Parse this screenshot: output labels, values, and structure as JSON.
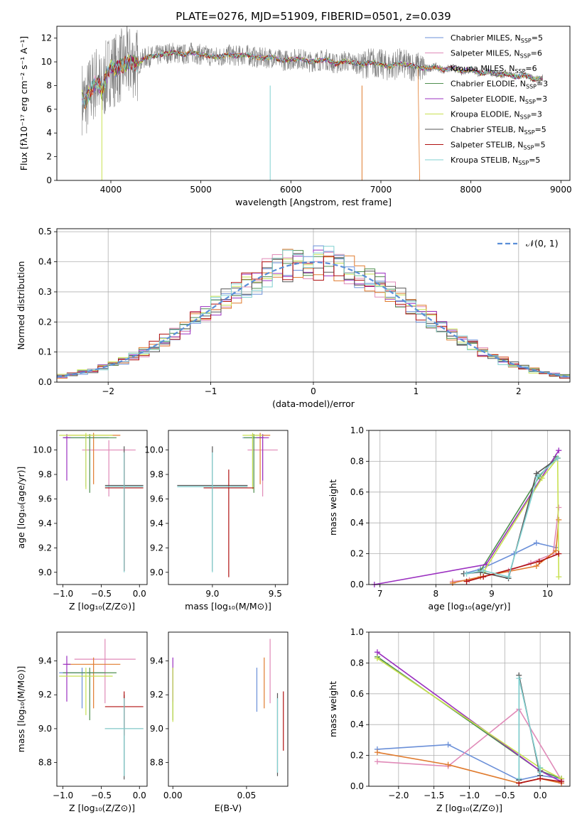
{
  "colors": {
    "chabrier_miles": "#6a8fd8",
    "salpeter_miles": "#e08ab8",
    "kroupa_miles": "#e07b2e",
    "chabrier_elodie": "#4f8f4f",
    "salpeter_elodie": "#9b30c0",
    "kroupa_elodie": "#c8e050",
    "chabrier_stelib": "#555555",
    "salpeter_stelib": "#b01010",
    "kroupa_stelib": "#80d0d0",
    "data": "#808080",
    "normal": "#5a8fd8"
  },
  "legend_series": [
    {
      "name": "Chabrier MILES, N",
      "sub": "SSP",
      "tail": "=5",
      "color": "#6a8fd8"
    },
    {
      "name": "Salpeter MILES, N",
      "sub": "SSP",
      "tail": "=6",
      "color": "#e08ab8"
    },
    {
      "name": "Kroupa MILES, N",
      "sub": "SSP",
      "tail": "=6",
      "color": "#e07b2e"
    },
    {
      "name": "Chabrier ELODIE, N",
      "sub": "SSP",
      "tail": "=3",
      "color": "#4f8f4f"
    },
    {
      "name": "Salpeter ELODIE, N",
      "sub": "SSP",
      "tail": "=3",
      "color": "#9b30c0"
    },
    {
      "name": "Kroupa ELODIE, N",
      "sub": "SSP",
      "tail": "=3",
      "color": "#c8e050"
    },
    {
      "name": "Chabrier STELIB, N",
      "sub": "SSP",
      "tail": "=5",
      "color": "#555555"
    },
    {
      "name": "Salpeter STELIB, N",
      "sub": "SSP",
      "tail": "=5",
      "color": "#b01010"
    },
    {
      "name": "Kroupa STELIB, N",
      "sub": "SSP",
      "tail": "=5",
      "color": "#80d0d0"
    }
  ],
  "chart_data": [
    {
      "type": "line",
      "title": "PLATE=0276, MJD=51909, FIBERID=0501, z=0.039",
      "xlabel": "wavelength [Angstrom, rest frame]",
      "ylabel": "Flux [fλ10⁻¹⁷ erg cm⁻² s⁻¹ A⁻¹]",
      "xlim": [
        3400,
        9100
      ],
      "ylim": [
        0,
        13
      ],
      "xticks": [
        "4000",
        "5000",
        "6000",
        "7000",
        "8000",
        "9000"
      ],
      "yticks": [
        "0",
        "2",
        "4",
        "6",
        "8",
        "10",
        "12"
      ],
      "legend_position": "upper-right",
      "spectrum": {
        "x": [
          3680,
          3720,
          3760,
          3800,
          3850,
          3900,
          3950,
          4000,
          4050,
          4100,
          4150,
          4200,
          4250,
          4300,
          4350,
          4400,
          4500,
          4600,
          4700,
          4800,
          4900,
          5000,
          5100,
          5200,
          5300,
          5400,
          5500,
          5600,
          5700,
          5800,
          5900,
          6000,
          6100,
          6200,
          6300,
          6400,
          6500,
          6600,
          6700,
          6800,
          6900,
          7000,
          7100,
          7200,
          7300,
          7400,
          7500,
          7600,
          7700,
          7800,
          7900,
          8000,
          8100,
          8200,
          8300,
          8400,
          8500,
          8600,
          8700,
          8800
        ],
        "y": [
          7.0,
          6.6,
          7.4,
          7.9,
          8.5,
          7.4,
          8.8,
          9.5,
          9.3,
          9.6,
          9.8,
          9.9,
          10.0,
          9.7,
          10.2,
          10.4,
          10.5,
          10.7,
          10.8,
          10.6,
          10.8,
          10.6,
          10.5,
          10.4,
          10.6,
          10.5,
          10.6,
          10.4,
          10.3,
          10.4,
          10.1,
          10.2,
          10.3,
          10.0,
          10.1,
          10.2,
          9.8,
          10.1,
          9.9,
          9.8,
          10.0,
          9.8,
          9.6,
          9.9,
          9.7,
          9.6,
          9.4,
          9.6,
          9.3,
          9.5,
          9.2,
          9.4,
          9.0,
          9.2,
          8.9,
          9.0,
          8.7,
          8.9,
          8.5,
          8.6
        ]
      }
    },
    {
      "type": "histogram",
      "xlabel": "(data-model)/error",
      "ylabel": "Normed distribution",
      "xlim": [
        -2.5,
        2.5
      ],
      "ylim": [
        0,
        0.51
      ],
      "xticks": [
        "−2",
        "−1",
        "0",
        "1",
        "2"
      ],
      "yticks": [
        "0.0",
        "0.1",
        "0.2",
        "0.3",
        "0.4",
        "0.5"
      ],
      "grid": true,
      "legend": "𝒩(0, 1)",
      "bin_width": 0.1
    },
    {
      "type": "scatter",
      "xlabel": "Z [log₁₀(Z/Z⊙)]",
      "ylabel": "age  [log₁₀(age/yr)]",
      "xlim": [
        -1.08,
        0.1
      ],
      "ylim": [
        8.9,
        10.16
      ],
      "xticks": [
        "−1.0",
        "−0.5",
        "0.0"
      ],
      "yticks": [
        "9.0",
        "9.2",
        "9.4",
        "9.6",
        "9.8",
        "10.0"
      ],
      "points": [
        {
          "x": -0.7,
          "y": 10.1,
          "xerr": 0.3,
          "ylo": 9.7,
          "yhi": 10.13,
          "c": "#6a8fd8"
        },
        {
          "x": -0.4,
          "y": 10.0,
          "xerr": 0.35,
          "ylo": 9.62,
          "yhi": 10.08,
          "c": "#e08ab8"
        },
        {
          "x": -0.6,
          "y": 10.12,
          "xerr": 0.35,
          "ylo": 9.72,
          "yhi": 10.14,
          "c": "#e07b2e"
        },
        {
          "x": -0.65,
          "y": 10.1,
          "xerr": 0.35,
          "ylo": 9.65,
          "yhi": 10.13,
          "c": "#4f8f4f"
        },
        {
          "x": -0.95,
          "y": 10.1,
          "xerr": 0.05,
          "ylo": 9.75,
          "yhi": 10.13,
          "c": "#9b30c0"
        },
        {
          "x": -0.7,
          "y": 10.12,
          "xerr": 0.35,
          "ylo": 9.68,
          "yhi": 10.14,
          "c": "#c8e050"
        },
        {
          "x": -0.2,
          "y": 9.71,
          "xerr": 0.25,
          "ylo": 9.01,
          "yhi": 10.03,
          "c": "#555555"
        },
        {
          "x": -0.2,
          "y": 9.69,
          "xerr": 0.25,
          "ylo": 9.01,
          "yhi": 9.98,
          "c": "#b01010"
        },
        {
          "x": -0.2,
          "y": 9.7,
          "xerr": 0.25,
          "ylo": 9.0,
          "yhi": 9.98,
          "c": "#80d0d0"
        }
      ]
    },
    {
      "type": "scatter",
      "xlabel": "mass [log₁₀(M/M⊙)]",
      "ylabel": "",
      "xlim": [
        8.65,
        9.6
      ],
      "ylim": [
        8.9,
        10.16
      ],
      "xticks": [
        "9.0",
        "9.5"
      ],
      "yticks": [
        "9.0",
        "9.2",
        "9.4",
        "9.6",
        "9.8",
        "10.0"
      ],
      "points": [
        {
          "x": 9.32,
          "y": 10.1,
          "xerr": 0.08,
          "ylo": 9.7,
          "yhi": 10.13,
          "c": "#6a8fd8"
        },
        {
          "x": 9.4,
          "y": 10.0,
          "xerr": 0.12,
          "ylo": 9.62,
          "yhi": 10.08,
          "c": "#e08ab8"
        },
        {
          "x": 9.38,
          "y": 10.12,
          "xerr": 0.08,
          "ylo": 9.72,
          "yhi": 10.14,
          "c": "#e07b2e"
        },
        {
          "x": 9.33,
          "y": 10.1,
          "xerr": 0.08,
          "ylo": 9.65,
          "yhi": 10.13,
          "c": "#4f8f4f"
        },
        {
          "x": 9.4,
          "y": 10.1,
          "xerr": 0.05,
          "ylo": 9.75,
          "yhi": 10.13,
          "c": "#9b30c0"
        },
        {
          "x": 9.32,
          "y": 10.12,
          "xerr": 0.08,
          "ylo": 9.68,
          "yhi": 10.14,
          "c": "#c8e050"
        },
        {
          "x": 9.0,
          "y": 9.71,
          "xerr": 0.28,
          "ylo": 9.01,
          "yhi": 10.03,
          "c": "#555555"
        },
        {
          "x": 9.13,
          "y": 9.69,
          "xerr": 0.2,
          "ylo": 8.96,
          "yhi": 9.84,
          "c": "#b01010"
        },
        {
          "x": 9.0,
          "y": 9.7,
          "xerr": 0.28,
          "ylo": 9.0,
          "yhi": 9.98,
          "c": "#80d0d0"
        }
      ]
    },
    {
      "type": "line",
      "xlabel": "age  [log₁₀(age/yr)]",
      "ylabel": "mass weight",
      "xlim": [
        6.8,
        10.4
      ],
      "ylim": [
        0,
        1
      ],
      "xticks": [
        "7",
        "8",
        "9",
        "10"
      ],
      "yticks": [
        "0.0",
        "0.2",
        "0.4",
        "0.6",
        "0.8",
        "1.0"
      ],
      "grid": true,
      "series": [
        {
          "c": "#6a8fd8",
          "x": [
            8.5,
            8.8,
            9.4,
            9.8,
            10.15
          ],
          "y": [
            0.07,
            0.1,
            0.2,
            0.27,
            0.24
          ]
        },
        {
          "c": "#e08ab8",
          "x": [
            8.3,
            8.6,
            9.3,
            9.7,
            10.1,
            10.2
          ],
          "y": [
            0.02,
            0.03,
            0.09,
            0.14,
            0.2,
            0.5
          ]
        },
        {
          "c": "#e07b2e",
          "x": [
            8.3,
            8.8,
            9.8,
            10.15,
            10.2
          ],
          "y": [
            0.01,
            0.05,
            0.12,
            0.22,
            0.42
          ]
        },
        {
          "c": "#4f8f4f",
          "x": [
            8.8,
            9.85,
            10.15
          ],
          "y": [
            0.09,
            0.7,
            0.83
          ]
        },
        {
          "c": "#9b30c0",
          "x": [
            6.9,
            8.9,
            10.2
          ],
          "y": [
            0.0,
            0.13,
            0.87
          ]
        },
        {
          "c": "#c8e050",
          "x": [
            8.85,
            9.9,
            10.18,
            10.2
          ],
          "y": [
            0.08,
            0.69,
            0.82,
            0.05
          ]
        },
        {
          "c": "#555555",
          "x": [
            8.5,
            8.8,
            9.3,
            9.8,
            10.18
          ],
          "y": [
            0.07,
            0.08,
            0.04,
            0.72,
            0.82
          ]
        },
        {
          "c": "#b01010",
          "x": [
            8.55,
            8.85,
            9.85,
            10.2
          ],
          "y": [
            0.02,
            0.05,
            0.15,
            0.2
          ]
        },
        {
          "c": "#80d0d0",
          "x": [
            8.55,
            8.85,
            9.3,
            9.82,
            10.18
          ],
          "y": [
            0.07,
            0.09,
            0.05,
            0.7,
            0.82
          ]
        }
      ]
    },
    {
      "type": "scatter",
      "xlabel": "Z [log₁₀(Z/Z⊙)]",
      "ylabel": "mass [log₁₀(M/M⊙)]",
      "xlim": [
        -1.08,
        0.1
      ],
      "ylim": [
        8.66,
        9.57
      ],
      "xticks": [
        "−1.0",
        "−0.5",
        "0.0"
      ],
      "yticks": [
        "8.8",
        "9.0",
        "9.2",
        "9.4"
      ],
      "points": [
        {
          "x": -0.75,
          "y": 9.33,
          "xerr": 0.3,
          "ylo": 9.12,
          "yhi": 9.36,
          "c": "#6a8fd8"
        },
        {
          "x": -0.45,
          "y": 9.41,
          "xerr": 0.4,
          "ylo": 9.15,
          "yhi": 9.53,
          "c": "#e08ab8"
        },
        {
          "x": -0.6,
          "y": 9.38,
          "xerr": 0.35,
          "ylo": 9.12,
          "yhi": 9.42,
          "c": "#e07b2e"
        },
        {
          "x": -0.65,
          "y": 9.33,
          "xerr": 0.35,
          "ylo": 9.05,
          "yhi": 9.36,
          "c": "#4f8f4f"
        },
        {
          "x": -0.95,
          "y": 9.38,
          "xerr": 0.05,
          "ylo": 9.16,
          "yhi": 9.43,
          "c": "#9b30c0"
        },
        {
          "x": -0.7,
          "y": 9.31,
          "xerr": 0.35,
          "ylo": 9.08,
          "yhi": 9.36,
          "c": "#c8e050"
        },
        {
          "x": -0.2,
          "y": 9.0,
          "xerr": 0.25,
          "ylo": 8.7,
          "yhi": 9.2,
          "c": "#555555"
        },
        {
          "x": -0.2,
          "y": 9.13,
          "xerr": 0.25,
          "ylo": 8.96,
          "yhi": 9.22,
          "c": "#b01010"
        },
        {
          "x": -0.2,
          "y": 9.0,
          "xerr": 0.25,
          "ylo": 8.72,
          "yhi": 9.18,
          "c": "#80d0d0"
        }
      ]
    },
    {
      "type": "scatter",
      "xlabel": "E(B-V)",
      "ylabel": "",
      "xlim": [
        -0.003,
        0.078
      ],
      "ylim": [
        8.66,
        9.57
      ],
      "xticks": [
        "0.00",
        "0.05"
      ],
      "yticks": [
        "8.8",
        "9.0",
        "9.2",
        "9.4"
      ],
      "points": [
        {
          "x": 0.057,
          "y": 9.33,
          "ylo": 9.1,
          "yhi": 9.36,
          "c": "#6a8fd8"
        },
        {
          "x": 0.066,
          "y": 9.41,
          "ylo": 9.15,
          "yhi": 9.53,
          "c": "#e08ab8"
        },
        {
          "x": 0.062,
          "y": 9.38,
          "ylo": 9.12,
          "yhi": 9.42,
          "c": "#e07b2e"
        },
        {
          "x": 0.0,
          "y": 9.33,
          "ylo": 9.05,
          "yhi": 9.36,
          "c": "#4f8f4f"
        },
        {
          "x": 0.0,
          "y": 9.38,
          "ylo": 9.16,
          "yhi": 9.42,
          "c": "#9b30c0"
        },
        {
          "x": 0.0,
          "y": 9.31,
          "ylo": 9.04,
          "yhi": 9.36,
          "c": "#c8e050"
        },
        {
          "x": 0.071,
          "y": 9.0,
          "ylo": 8.72,
          "yhi": 9.21,
          "c": "#555555"
        },
        {
          "x": 0.075,
          "y": 9.13,
          "ylo": 8.87,
          "yhi": 9.22,
          "c": "#b01010"
        },
        {
          "x": 0.071,
          "y": 9.0,
          "ylo": 8.74,
          "yhi": 9.18,
          "c": "#80d0d0"
        }
      ]
    },
    {
      "type": "line",
      "xlabel": "Z [log₁₀(Z/Z⊙)]",
      "ylabel": "mass weight",
      "xlim": [
        -2.42,
        0.42
      ],
      "ylim": [
        0,
        1
      ],
      "xticks": [
        "−2.0",
        "−1.5",
        "−1.0",
        "−0.5",
        "0.0"
      ],
      "yticks": [
        "0.0",
        "0.2",
        "0.4",
        "0.6",
        "0.8",
        "1.0"
      ],
      "grid": true,
      "series": [
        {
          "c": "#6a8fd8",
          "x": [
            -2.3,
            -1.3,
            -0.3,
            0.0,
            0.3
          ],
          "y": [
            0.24,
            0.27,
            0.04,
            0.07,
            0.05
          ]
        },
        {
          "c": "#e08ab8",
          "x": [
            -2.3,
            -1.3,
            -0.3,
            0.3
          ],
          "y": [
            0.16,
            0.13,
            0.5,
            0.04
          ]
        },
        {
          "c": "#e07b2e",
          "x": [
            -2.3,
            -1.3,
            -0.3,
            0.0,
            0.3
          ],
          "y": [
            0.22,
            0.14,
            0.02,
            0.05,
            0.02
          ]
        },
        {
          "c": "#4f8f4f",
          "x": [
            -2.3,
            0.0,
            0.3
          ],
          "y": [
            0.84,
            0.1,
            0.05
          ]
        },
        {
          "c": "#9b30c0",
          "x": [
            -2.3,
            0.0,
            0.3
          ],
          "y": [
            0.87,
            0.1,
            0.03
          ]
        },
        {
          "c": "#c8e050",
          "x": [
            -2.3,
            0.0,
            0.3
          ],
          "y": [
            0.83,
            0.12,
            0.05
          ]
        },
        {
          "c": "#555555",
          "x": [
            -0.3,
            -0.3,
            0.0,
            0.0
          ],
          "y": [
            0.04,
            0.72,
            0.07,
            0.1
          ]
        },
        {
          "c": "#b01010",
          "x": [
            -0.3,
            0.0,
            0.3
          ],
          "y": [
            0.02,
            0.05,
            0.03
          ]
        },
        {
          "c": "#80d0d0",
          "x": [
            -0.3,
            -0.3,
            0.0,
            0.0
          ],
          "y": [
            0.05,
            0.7,
            0.09,
            0.12
          ]
        }
      ]
    }
  ]
}
